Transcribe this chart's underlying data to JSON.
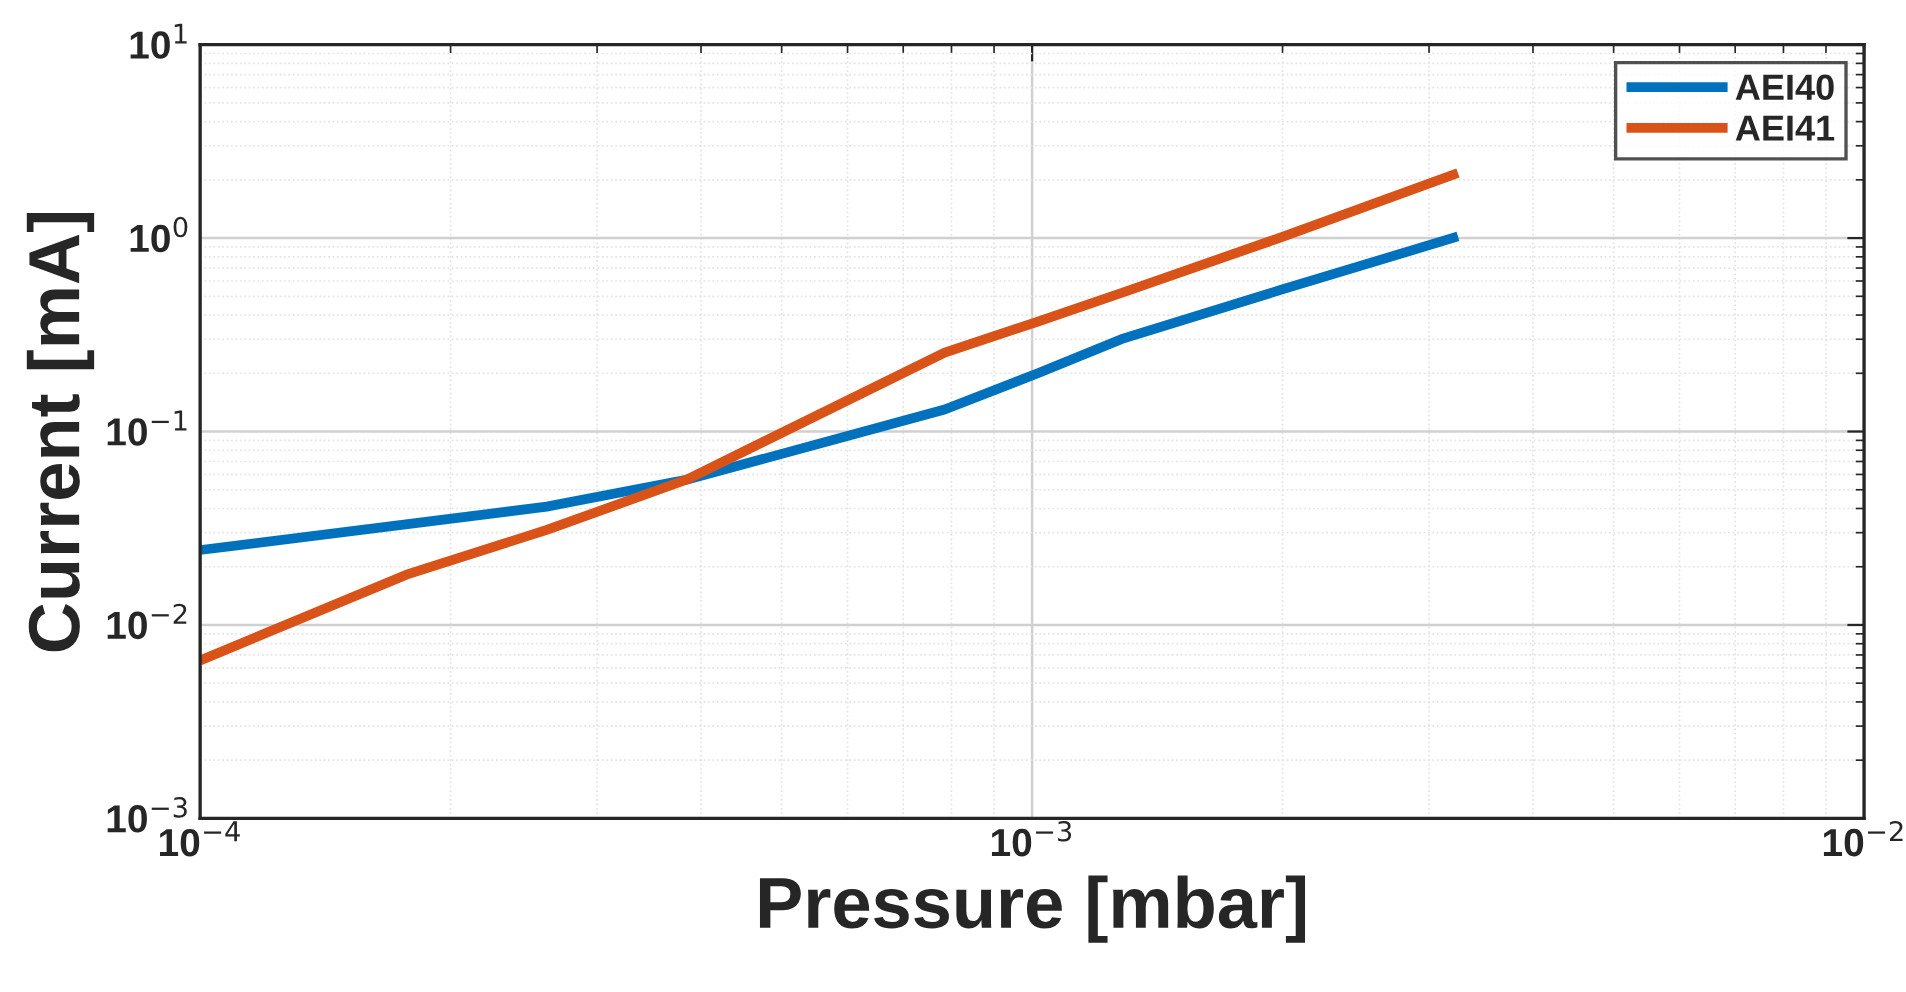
{
  "chart_data": {
    "type": "line",
    "xlabel": "Pressure [mbar]",
    "ylabel": "Current [mA]",
    "log": "xy",
    "grid": true,
    "legend": "top right",
    "line_style": "solid",
    "xlim": [
      0.0001,
      0.01
    ],
    "ylim": [
      0.001,
      10
    ],
    "xticks": [
      {
        "value": 0.0001,
        "label": "10$^{−4}$"
      },
      {
        "value": 0.001,
        "label": "10$^{−3}$"
      },
      {
        "value": 0.01,
        "label": "10$^{−2}$"
      }
    ],
    "yticks": [
      {
        "value": 0.001,
        "label": "10$^{−3}$"
      },
      {
        "value": 0.01,
        "label": "10$^{−2}$"
      },
      {
        "value": 0.1,
        "label": "10$^{−1}$"
      },
      {
        "value": 1,
        "label": "10$^{0}$"
      },
      {
        "value": 10,
        "label": "10$^{1}$"
      }
    ],
    "series": [
      {
        "name": "AEI40",
        "color": "#0072bd",
        "x": [
          0.0001,
          0.000261,
          0.000384,
          0.000785,
          0.001016,
          0.00128,
          0.00198,
          0.00325
        ],
        "values": [
          0.0244,
          0.0409,
          0.0563,
          0.13,
          0.2,
          0.3,
          0.536,
          1.02
        ]
      },
      {
        "name": "AEI41",
        "color": "#d95319",
        "x": [
          0.0001,
          0.000177,
          0.000261,
          0.000384,
          0.000785,
          0.001016,
          0.00128,
          0.00198,
          0.00325
        ],
        "values": [
          0.00655,
          0.0182,
          0.031,
          0.0563,
          0.256,
          0.37,
          0.52,
          1.0,
          2.17
        ]
      }
    ]
  }
}
